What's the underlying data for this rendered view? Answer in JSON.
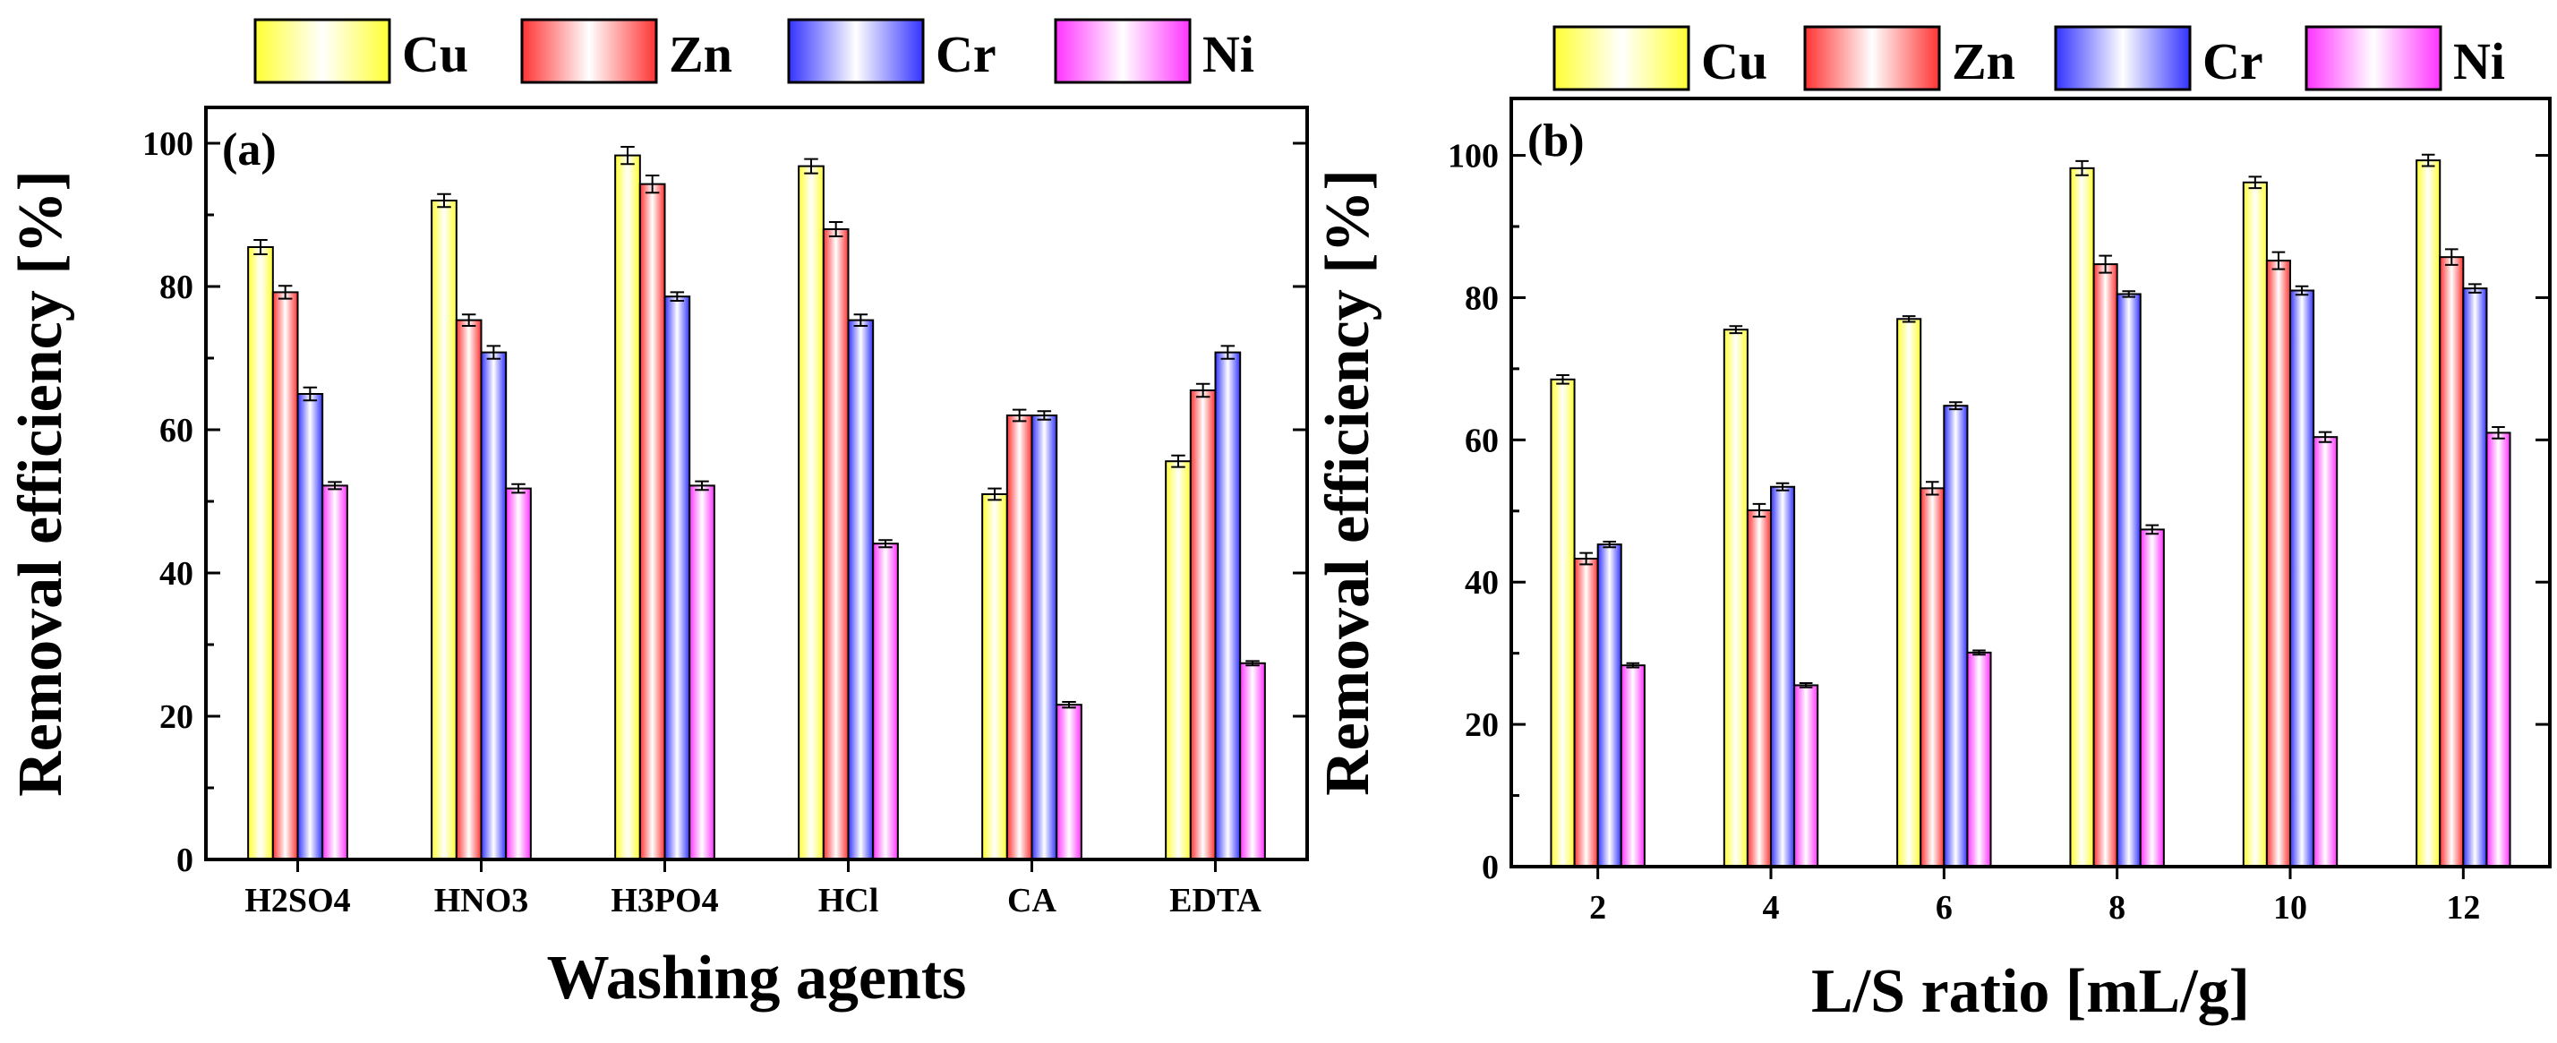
{
  "legend": {
    "series": [
      {
        "name": "Cu",
        "color": "#ffff33"
      },
      {
        "name": "Zn",
        "color": "#ff3333"
      },
      {
        "name": "Cr",
        "color": "#3333ff"
      },
      {
        "name": "Ni",
        "color": "#ff33ff"
      }
    ]
  },
  "chart_data": [
    {
      "type": "bar",
      "panel_label": "(a)",
      "xlabel": "Washing agents",
      "ylabel": "Removal efficiency [%]",
      "ylim": [
        0,
        105
      ],
      "yticks": [
        0,
        20,
        40,
        60,
        80,
        100
      ],
      "categories": [
        "H2SO4",
        "HNO3",
        "H3PO4",
        "HCl",
        "CA",
        "EDTA"
      ],
      "series": [
        {
          "name": "Cu",
          "values": [
            85.5,
            92,
            98.3,
            96.8,
            51,
            55.6
          ],
          "errors": [
            1.0,
            0.9,
            1.2,
            1.0,
            0.8,
            0.8
          ]
        },
        {
          "name": "Zn",
          "values": [
            79.2,
            75.3,
            94.3,
            88,
            62,
            65.5
          ],
          "errors": [
            0.9,
            0.8,
            1.2,
            1.0,
            0.8,
            0.9
          ]
        },
        {
          "name": "Cr",
          "values": [
            65,
            70.8,
            78.6,
            75.3,
            62,
            70.8
          ],
          "errors": [
            0.9,
            0.9,
            0.6,
            0.8,
            0.6,
            0.9
          ]
        },
        {
          "name": "Ni",
          "values": [
            52.2,
            51.8,
            52.2,
            44.1,
            21.6,
            27.4
          ],
          "errors": [
            0.5,
            0.6,
            0.6,
            0.5,
            0.4,
            0.3
          ]
        }
      ]
    },
    {
      "type": "bar",
      "panel_label": "(b)",
      "xlabel": "L/S ratio [mL/g]",
      "ylabel": "Removal efficiency [%]",
      "ylim": [
        0,
        108
      ],
      "yticks": [
        0,
        20,
        40,
        60,
        80,
        100
      ],
      "categories": [
        "2",
        "4",
        "6",
        "8",
        "10",
        "12"
      ],
      "series": [
        {
          "name": "Cu",
          "values": [
            68.5,
            75.5,
            77,
            98.2,
            96.2,
            99.3
          ],
          "errors": [
            0.6,
            0.5,
            0.4,
            1.0,
            0.8,
            0.8
          ]
        },
        {
          "name": "Zn",
          "values": [
            43.3,
            50.1,
            53.2,
            84.7,
            85.2,
            85.7
          ],
          "errors": [
            0.8,
            0.9,
            0.9,
            1.2,
            1.2,
            1.1
          ]
        },
        {
          "name": "Cr",
          "values": [
            45.3,
            53.4,
            64.8,
            80.5,
            81,
            81.3
          ],
          "errors": [
            0.4,
            0.5,
            0.5,
            0.4,
            0.6,
            0.6
          ]
        },
        {
          "name": "Ni",
          "values": [
            28.3,
            25.5,
            30.1,
            47.4,
            60.4,
            61
          ],
          "errors": [
            0.3,
            0.3,
            0.3,
            0.6,
            0.7,
            0.8
          ]
        }
      ]
    }
  ]
}
